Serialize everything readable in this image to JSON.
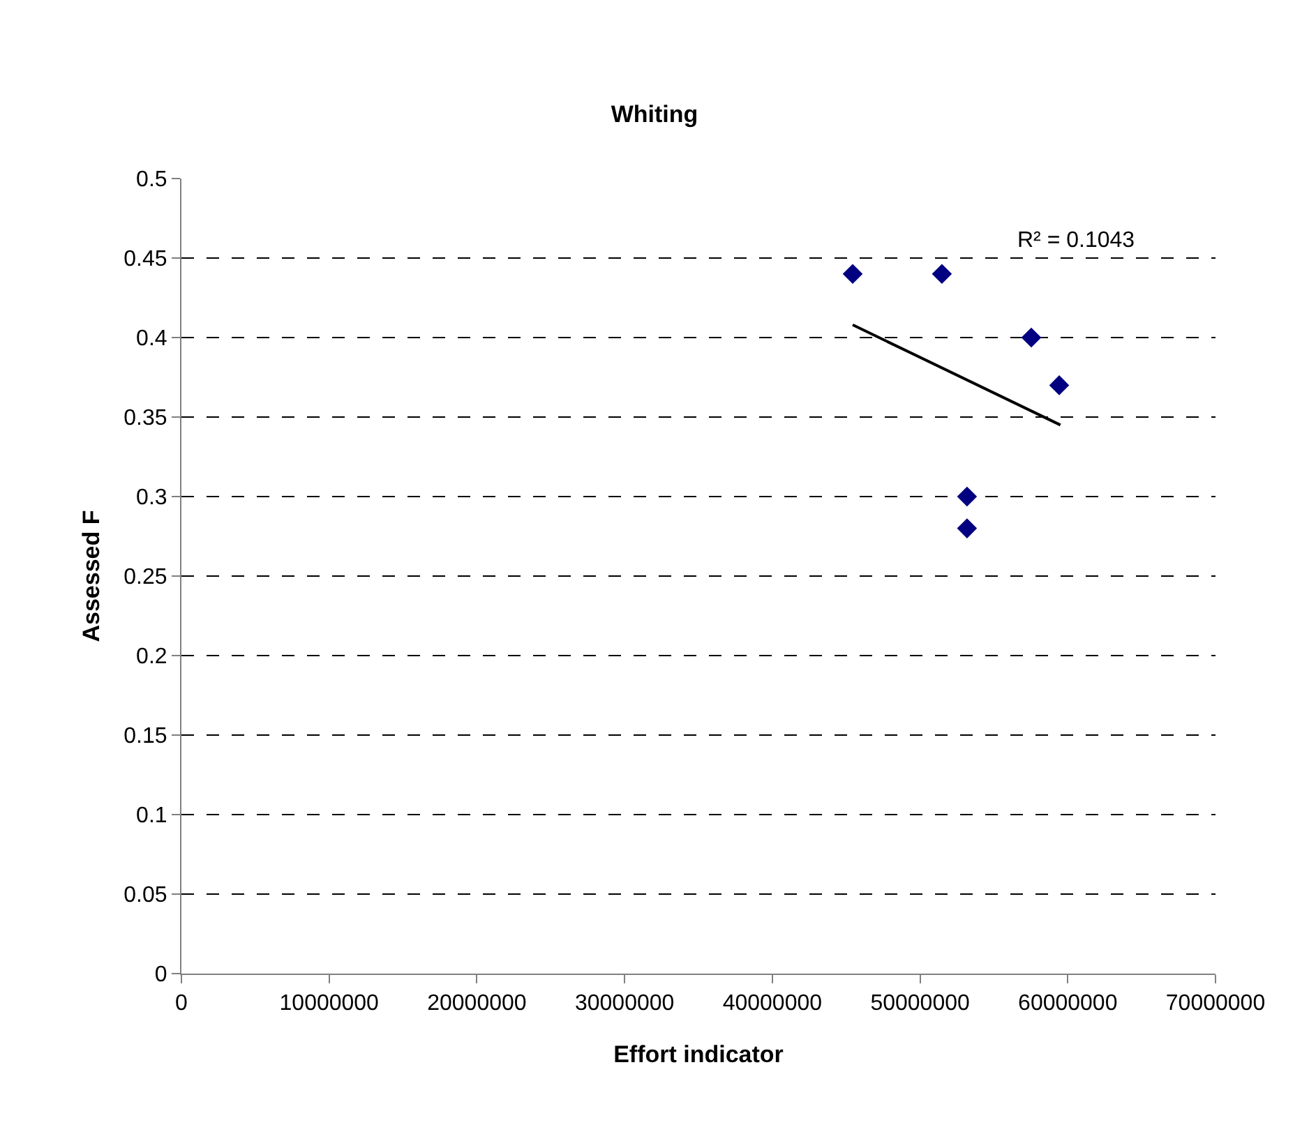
{
  "chart_data": {
    "type": "scatter",
    "title": "Whiting",
    "xlabel": "Effort indicator",
    "ylabel": "Assessed F",
    "series": [
      {
        "color": "#000080",
        "marker": "diamond",
        "x": [
          45440000,
          51480000,
          57530000,
          59420000,
          53180000,
          53180000
        ],
        "values": [
          0.44,
          0.44,
          0.4,
          0.37,
          0.3,
          0.28
        ]
      },
      {
        "type": "line",
        "color": "#000000",
        "marker": "none",
        "line_style": "solid",
        "x": [
          45440000,
          59500000
        ],
        "values": [
          0.408,
          0.345
        ]
      }
    ],
    "annotations": [
      "R² = 0.1043"
    ],
    "xlim": [
      0,
      70000000
    ],
    "xticks": [
      0,
      10000000,
      20000000,
      30000000,
      40000000,
      50000000,
      60000000,
      70000000
    ],
    "ylim": [
      0,
      0.5
    ],
    "yticks": [
      0,
      0.05,
      0.1,
      0.15,
      0.2,
      0.25,
      0.3,
      0.35,
      0.4,
      0.45,
      0.5
    ],
    "grid": "y"
  }
}
